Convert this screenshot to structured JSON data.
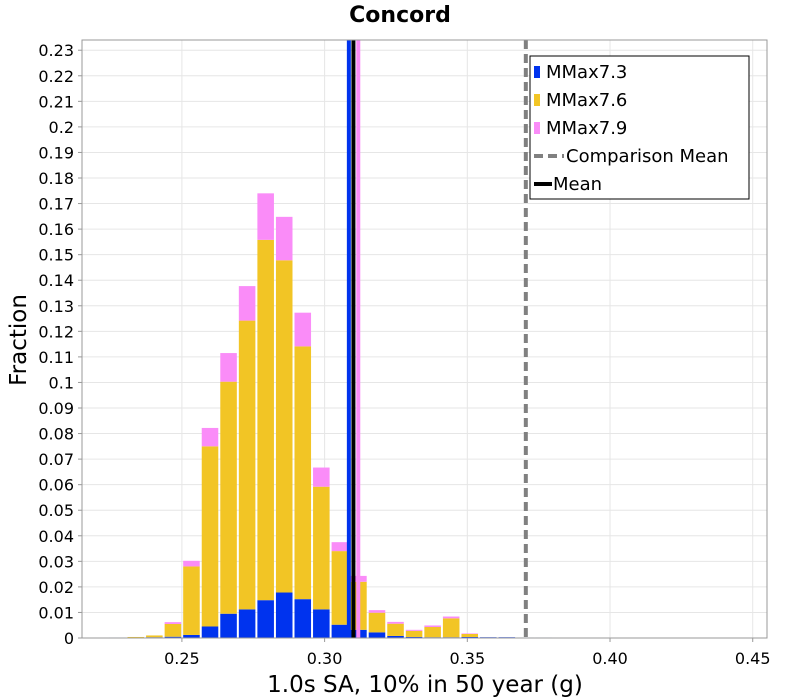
{
  "chart_data": {
    "type": "bar",
    "stacked": true,
    "title": "Concord",
    "xlabel": "1.0s SA, 10% in 50 year (g)",
    "ylabel": "Fraction",
    "xlim": [
      0.215,
      0.455
    ],
    "ylim": [
      0,
      0.234
    ],
    "bin_width": 0.0065,
    "x_ticks": [
      {
        "value": 0.25,
        "label": "0.25"
      },
      {
        "value": 0.3,
        "label": "0.30"
      },
      {
        "value": 0.35,
        "label": "0.35"
      },
      {
        "value": 0.4,
        "label": "0.40"
      },
      {
        "value": 0.45,
        "label": "0.45"
      }
    ],
    "y_ticks": [
      {
        "value": 0,
        "label": "0"
      },
      {
        "value": 0.01,
        "label": "0.01"
      },
      {
        "value": 0.02,
        "label": "0.02"
      },
      {
        "value": 0.03,
        "label": "0.03"
      },
      {
        "value": 0.04,
        "label": "0.04"
      },
      {
        "value": 0.05,
        "label": "0.05"
      },
      {
        "value": 0.06,
        "label": "0.06"
      },
      {
        "value": 0.07,
        "label": "0.07"
      },
      {
        "value": 0.08,
        "label": "0.08"
      },
      {
        "value": 0.09,
        "label": "0.09"
      },
      {
        "value": 0.1,
        "label": "0.1"
      },
      {
        "value": 0.11,
        "label": "0.11"
      },
      {
        "value": 0.12,
        "label": "0.12"
      },
      {
        "value": 0.13,
        "label": "0.13"
      },
      {
        "value": 0.14,
        "label": "0.14"
      },
      {
        "value": 0.15,
        "label": "0.15"
      },
      {
        "value": 0.16,
        "label": "0.16"
      },
      {
        "value": 0.17,
        "label": "0.17"
      },
      {
        "value": 0.18,
        "label": "0.18"
      },
      {
        "value": 0.19,
        "label": "0.19"
      },
      {
        "value": 0.2,
        "label": "0.2"
      },
      {
        "value": 0.21,
        "label": "0.21"
      },
      {
        "value": 0.22,
        "label": "0.22"
      },
      {
        "value": 0.23,
        "label": "0.23"
      }
    ],
    "bins": [
      0.2241,
      0.2306,
      0.2371,
      0.2436,
      0.2501,
      0.2566,
      0.2631,
      0.2696,
      0.2761,
      0.2826,
      0.2891,
      0.2956,
      0.3021,
      0.3086,
      0.3151,
      0.3216,
      0.3281,
      0.3346,
      0.3411,
      0.3476,
      0.3541,
      0.3606,
      0.3671,
      0.3736,
      0.3801,
      0.3866,
      0.3931,
      0.3996,
      0.4061
    ],
    "series": [
      {
        "name": "MMax7.3",
        "color": "#0033ee",
        "values": [
          0.0002,
          0.0002,
          0.0003,
          0.0005,
          0.0012,
          0.0045,
          0.0095,
          0.0112,
          0.0148,
          0.0178,
          0.0152,
          0.0112,
          0.0052,
          0.0032,
          0.0022,
          0.0008,
          0.0004,
          0.0003,
          0.0003,
          0.0004,
          0.0003,
          0.0003,
          0.0002,
          0.0002,
          0.0001,
          0.0001,
          0.0001,
          0.0001,
          0.0001
        ]
      },
      {
        "name": "MMax7.6",
        "color": "#f2c525",
        "values": [
          0.0,
          0.0002,
          0.0007,
          0.005,
          0.0268,
          0.0705,
          0.0908,
          0.113,
          0.141,
          0.13,
          0.0989,
          0.048,
          0.0288,
          0.0188,
          0.0077,
          0.0048,
          0.0024,
          0.004,
          0.0074,
          0.0012,
          0.0,
          0.0,
          0.0,
          0.0,
          0.0,
          0.0,
          0.0,
          0.0,
          0.0
        ]
      },
      {
        "name": "MMax7.9",
        "color": "#fa8cf8",
        "values": [
          0.0,
          0.0,
          0.0,
          0.0007,
          0.0022,
          0.0072,
          0.0112,
          0.0135,
          0.0182,
          0.017,
          0.0132,
          0.0075,
          0.0035,
          0.0023,
          0.001,
          0.0007,
          0.0004,
          0.0006,
          0.0007,
          0.0002,
          0.0,
          0.0,
          0.0,
          0.0,
          0.0,
          0.0,
          0.0,
          0.0,
          0.0
        ]
      }
    ],
    "mean_lines": [
      {
        "name": "MMax7.3 mean",
        "x": 0.3085,
        "color": "#0033ee"
      },
      {
        "name": "MMax7.9 mean",
        "x": 0.3118,
        "color": "#fa8cf8"
      },
      {
        "name": "Mean",
        "x": 0.3101,
        "color": "#000000"
      }
    ],
    "comparison_mean": {
      "name": "Comparison Mean",
      "x": 0.3705,
      "color": "#808080"
    },
    "legend": {
      "position": "top-right",
      "entries": [
        {
          "label": "MMax7.3",
          "kind": "box",
          "color": "#0033ee"
        },
        {
          "label": "MMax7.6",
          "kind": "box",
          "color": "#f2c525"
        },
        {
          "label": "MMax7.9",
          "kind": "box",
          "color": "#fa8cf8"
        },
        {
          "label": "Comparison Mean",
          "kind": "dashed",
          "color": "#808080"
        },
        {
          "label": "Mean",
          "kind": "line",
          "color": "#000000"
        }
      ]
    },
    "grid": true
  }
}
